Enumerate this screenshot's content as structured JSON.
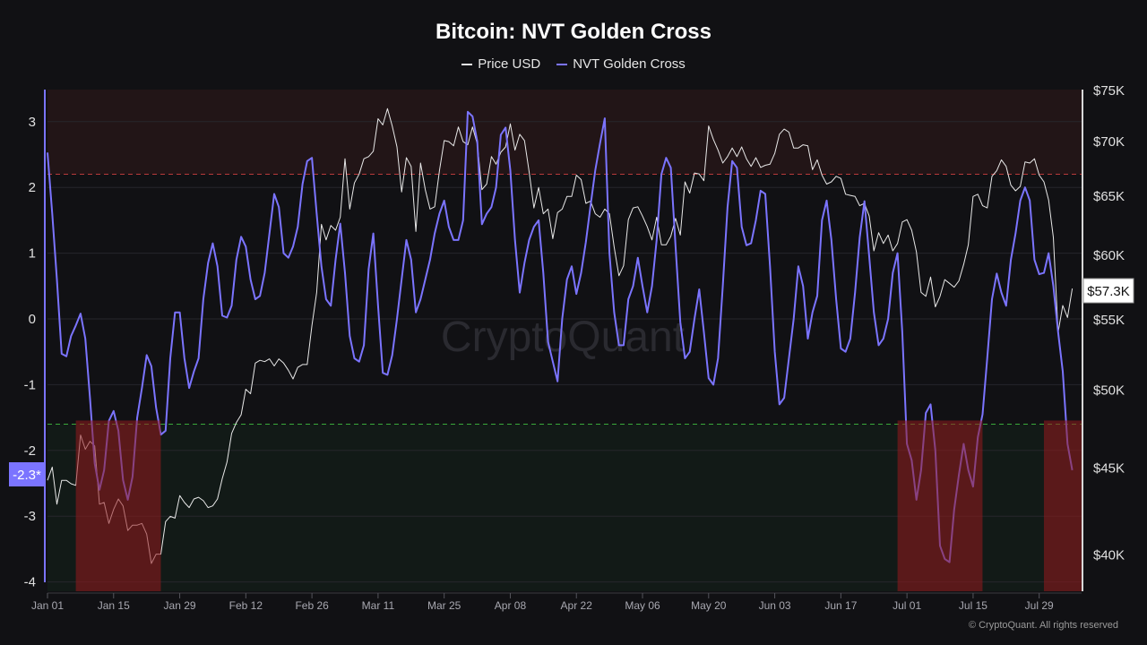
{
  "chart_data": {
    "type": "line",
    "title": "Bitcoin: NVT Golden Cross",
    "x_tick_labels": [
      "Jan 01",
      "Jan 15",
      "Jan 29",
      "Feb 12",
      "Feb 26",
      "Mar 11",
      "Mar 25",
      "Apr 08",
      "Apr 22",
      "May 06",
      "May 20",
      "Jun 03",
      "Jun 17",
      "Jul 01",
      "Jul 15",
      "Jul 29"
    ],
    "left_axis": {
      "ticks": [
        3,
        2,
        1,
        0,
        -1,
        -2,
        -3,
        -4
      ],
      "tick_labels": [
        "3",
        "2",
        "1",
        "0",
        "-1",
        "-2",
        "-3",
        "-4"
      ],
      "range": [
        -4.14,
        3.49
      ],
      "current_label": "-2.3*"
    },
    "right_axis": {
      "scale": "log",
      "ticks": [
        75,
        70,
        65,
        60,
        55,
        50,
        45,
        40
      ],
      "tick_labels": [
        "$75K",
        "$70K",
        "$65K",
        "$60K",
        "$55K",
        "$50K",
        "$45K",
        "$40K"
      ],
      "range_thousands_usd": [
        38.1,
        75
      ],
      "current_label": "$57.3K"
    },
    "thresholds": {
      "overheated": 2.2,
      "oversold": -1.6
    },
    "highlight_ranges": [
      [
        "Jan 07",
        "Jan 25"
      ],
      [
        "Jun 29",
        "Jul 17"
      ],
      [
        "Jul 30",
        "Aug 07"
      ]
    ],
    "grid": true,
    "legend_position": "top-center",
    "watermark": "CryptoQuant",
    "series": [
      {
        "name": "Price USD",
        "axis": "right",
        "unit": "thousand USD",
        "color": "#e8e8e8",
        "values_by_month": {
          "Jan": [
            44.2,
            45.0,
            42.8,
            44.2,
            44.2,
            44.0,
            43.9,
            47.0,
            46.1,
            46.6,
            46.3,
            42.8,
            42.9,
            41.7,
            42.5,
            43.1,
            42.7,
            41.3,
            41.6,
            41.6,
            41.7,
            41.1,
            39.5,
            40.0,
            40.0,
            41.8,
            42.1,
            42.0,
            43.3,
            42.9,
            42.6
          ],
          "Feb": [
            43.1,
            43.2,
            43.0,
            42.6,
            42.7,
            43.1,
            44.3,
            45.3,
            47.1,
            47.8,
            48.3,
            50.0,
            49.7,
            51.8,
            52.0,
            51.9,
            52.1,
            51.6,
            52.1,
            51.8,
            51.3,
            50.7,
            51.5,
            51.7,
            51.7,
            54.5,
            57.0,
            62.5,
            61.2
          ],
          "Mar": [
            62.4,
            62.0,
            63.1,
            68.3,
            63.8,
            66.1,
            66.9,
            68.3,
            68.5,
            69.0,
            72.1,
            71.5,
            73.1,
            71.4,
            69.4,
            65.3,
            68.4,
            67.6,
            61.9,
            67.9,
            65.5,
            63.8,
            64.0,
            67.2,
            70.0,
            69.9,
            69.5,
            71.3,
            69.9,
            69.6,
            71.3
          ],
          "Apr": [
            69.7,
            65.5,
            66.0,
            68.5,
            67.8,
            68.9,
            69.4,
            71.6,
            69.1,
            70.6,
            70.0,
            67.1,
            63.9,
            65.7,
            63.4,
            63.8,
            61.3,
            63.5,
            63.8,
            64.9,
            64.9,
            66.8,
            66.4,
            64.3,
            64.5,
            63.4,
            63.1,
            63.8,
            63.4,
            60.6
          ],
          "May": [
            58.3,
            59.1,
            62.9,
            63.9,
            64.0,
            63.2,
            62.3,
            61.2,
            63.1,
            60.8,
            60.8,
            61.5,
            63.0,
            61.6,
            66.2,
            65.2,
            67.0,
            66.9,
            66.3,
            71.4,
            70.1,
            69.1,
            67.9,
            68.5,
            69.3,
            68.5,
            69.4,
            68.3,
            67.6,
            68.4,
            67.5
          ],
          "Jun": [
            67.7,
            67.8,
            68.8,
            70.6,
            71.1,
            70.8,
            69.3,
            69.3,
            69.6,
            69.5,
            67.3,
            68.2,
            66.8,
            66.0,
            66.2,
            66.7,
            66.5,
            65.1,
            65.0,
            64.9,
            64.1,
            64.3,
            63.2,
            60.3,
            61.8,
            60.9,
            61.6,
            60.3,
            60.9,
            62.7
          ],
          "Jul": [
            62.9,
            62.0,
            60.2,
            57.0,
            56.7,
            58.2,
            55.9,
            56.7,
            58.0,
            57.7,
            57.4,
            57.9,
            59.2,
            60.8,
            64.9,
            65.1,
            64.1,
            63.9,
            66.7,
            67.2,
            68.2,
            67.6,
            65.9,
            65.4,
            65.8,
            68.0,
            67.9,
            68.3,
            66.8,
            66.2,
            64.6
          ],
          "Aug": [
            61.4,
            54.0,
            56.0,
            55.1,
            57.3
          ]
        }
      },
      {
        "name": "NVT Golden Cross",
        "axis": "left",
        "color": "#7b74ff",
        "values_by_month": {
          "Jan": [
            2.53,
            1.6,
            0.6,
            -0.53,
            -0.57,
            -0.26,
            -0.1,
            0.08,
            -0.3,
            -1.2,
            -2.2,
            -2.6,
            -2.3,
            -1.55,
            -1.4,
            -1.7,
            -2.45,
            -2.75,
            -2.4,
            -1.5,
            -1.05,
            -0.55,
            -0.72,
            -1.35,
            -1.76,
            -1.7,
            -0.6,
            0.1,
            0.1,
            -0.6,
            -1.05
          ],
          "Feb": [
            -0.8,
            -0.6,
            0.3,
            0.85,
            1.15,
            0.8,
            0.05,
            0.02,
            0.2,
            0.9,
            1.25,
            1.1,
            0.6,
            0.3,
            0.35,
            0.7,
            1.3,
            1.9,
            1.7,
            1.0,
            0.93,
            1.1,
            1.4,
            2.05,
            2.4,
            2.45,
            1.6,
            0.8,
            0.3
          ],
          "Mar": [
            0.2,
            0.9,
            1.45,
            0.7,
            -0.26,
            -0.6,
            -0.65,
            -0.4,
            0.76,
            1.3,
            0.2,
            -0.82,
            -0.85,
            -0.55,
            0.0,
            0.6,
            1.2,
            0.9,
            0.1,
            0.3,
            0.6,
            0.9,
            1.3,
            1.6,
            1.8,
            1.4,
            1.2,
            1.2,
            1.5,
            3.15,
            3.08
          ],
          "Apr": [
            2.7,
            1.44,
            1.6,
            1.7,
            2.0,
            2.8,
            2.91,
            2.26,
            1.2,
            0.4,
            0.85,
            1.2,
            1.4,
            1.5,
            0.7,
            -0.35,
            -0.65,
            -0.95,
            0.0,
            0.6,
            0.8,
            0.38,
            0.7,
            1.17,
            1.72,
            2.26,
            2.67,
            3.05,
            1.0,
            0.1
          ],
          "May": [
            -0.4,
            -0.4,
            0.3,
            0.5,
            0.93,
            0.5,
            0.1,
            0.5,
            1.2,
            2.2,
            2.45,
            2.3,
            1.1,
            -0.05,
            -0.6,
            -0.5,
            0.0,
            0.45,
            -0.2,
            -0.9,
            -1.0,
            -0.6,
            0.5,
            1.7,
            2.4,
            2.3,
            1.4,
            1.12,
            1.15,
            1.5,
            1.95
          ],
          "Jun": [
            1.9,
            0.8,
            -0.5,
            -1.3,
            -1.2,
            -0.6,
            0.0,
            0.8,
            0.5,
            -0.3,
            0.1,
            0.35,
            1.5,
            1.8,
            1.2,
            0.3,
            -0.45,
            -0.5,
            -0.3,
            0.4,
            1.24,
            1.79,
            0.95,
            0.1,
            -0.4,
            -0.3,
            0.0,
            0.7,
            1.0,
            -0.2
          ],
          "Jul": [
            -1.9,
            -2.15,
            -2.75,
            -2.3,
            -1.43,
            -1.3,
            -2.0,
            -3.45,
            -3.65,
            -3.7,
            -2.9,
            -2.37,
            -1.9,
            -2.3,
            -2.55,
            -1.8,
            -1.45,
            -0.6,
            0.3,
            0.69,
            0.4,
            0.2,
            0.9,
            1.3,
            1.8,
            2.0,
            1.8,
            0.9,
            0.68,
            0.7,
            1.0
          ],
          "Aug": [
            0.5,
            -0.2,
            -0.8,
            -1.9,
            -2.3
          ]
        }
      }
    ]
  },
  "legend": {
    "price_label": "Price USD",
    "nvt_label": "NVT Golden Cross"
  },
  "footer": {
    "copyright": "© CryptoQuant. All rights reserved"
  }
}
